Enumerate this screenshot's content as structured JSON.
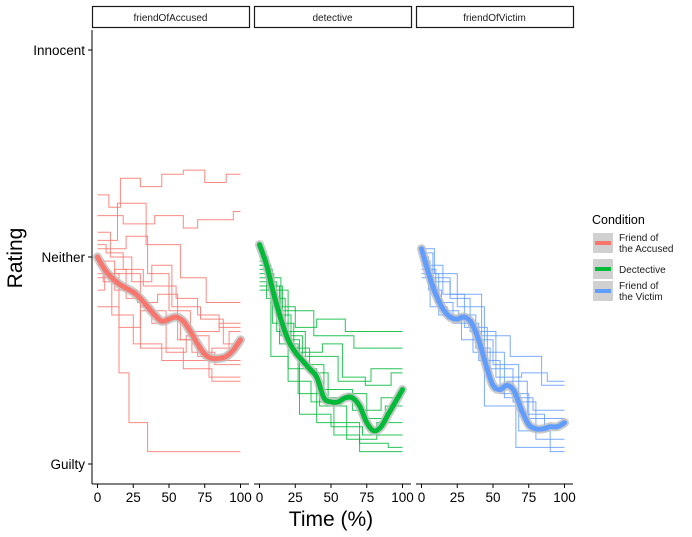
{
  "chart_data": {
    "type": "line",
    "xlabel": "Time (%)",
    "ylabel": "Rating",
    "xlim": [
      0,
      100
    ],
    "ylim": [
      -50,
      50
    ],
    "x_ticks": [
      0,
      25,
      50,
      75,
      100
    ],
    "x_tick_labels": [
      "0",
      "25",
      "50",
      "75",
      "100"
    ],
    "y_ticks": [
      -50,
      0,
      50
    ],
    "y_tick_labels": [
      "Guilty",
      "Neither",
      "Innocent"
    ],
    "grid": false,
    "legend_position": "right",
    "legend_title": "Condition",
    "panels": [
      {
        "strip": "friendOfAccused",
        "color": "#F8766D",
        "legend_label": [
          "Friend of",
          "the Accused"
        ],
        "smooth": {
          "x": [
            0,
            5,
            10,
            15,
            20,
            25,
            30,
            35,
            40,
            45,
            50,
            55,
            60,
            65,
            70,
            75,
            80,
            85,
            90,
            95,
            100
          ],
          "y": [
            0,
            -3,
            -5,
            -6.5,
            -7.5,
            -8.5,
            -10,
            -12,
            -14,
            -15.5,
            -15,
            -14.5,
            -15.5,
            -18,
            -21,
            -23.5,
            -24.5,
            -24.5,
            -24,
            -22.5,
            -20
          ]
        },
        "traces": [
          {
            "x": [
              0,
              4,
              4,
              12,
              12,
              20,
              20,
              30,
              30,
              38,
              38,
              50,
              50,
              58,
              58,
              70,
              70,
              80,
              80,
              92,
              92,
              100
            ],
            "y": [
              -2,
              -2,
              -6,
              -6,
              -3,
              -3,
              -10,
              -10,
              -12,
              -12,
              -16,
              -16,
              -15,
              -15,
              -20,
              -20,
              -24,
              -24,
              -22,
              -22,
              -18,
              -18
            ]
          },
          {
            "x": [
              0,
              8,
              8,
              16,
              16,
              30,
              30,
              45,
              45,
              60,
              60,
              75,
              75,
              90,
              90,
              100
            ],
            "y": [
              15,
              15,
              12,
              12,
              19,
              19,
              17,
              17,
              20,
              20,
              21,
              21,
              18,
              18,
              20,
              20
            ]
          },
          {
            "x": [
              0,
              18,
              18,
              40,
              40,
              60,
              60,
              70,
              70,
              95,
              95,
              100
            ],
            "y": [
              10,
              10,
              8,
              8,
              10,
              10,
              7,
              7,
              9,
              9,
              11,
              11
            ]
          },
          {
            "x": [
              0,
              10,
              10,
              25,
              25,
              45,
              45,
              60,
              60,
              80,
              80,
              100
            ],
            "y": [
              -5,
              -5,
              -14,
              -14,
              -21,
              -21,
              -25,
              -25,
              -27,
              -27,
              -30,
              -30
            ]
          },
          {
            "x": [
              0,
              15,
              15,
              22,
              22,
              35,
              35,
              100
            ],
            "y": [
              -12,
              -12,
              -28,
              -28,
              -40,
              -40,
              -47,
              -47
            ]
          },
          {
            "x": [
              0,
              6,
              6,
              18,
              18,
              32,
              32,
              55,
              55,
              70,
              70,
              85,
              85,
              100
            ],
            "y": [
              3,
              3,
              1,
              1,
              -3,
              -3,
              -7,
              -7,
              -10,
              -10,
              -14,
              -14,
              -17,
              -17
            ]
          },
          {
            "x": [
              0,
              12,
              12,
              28,
              28,
              42,
              42,
              56,
              56,
              66,
              66,
              82,
              82,
              100
            ],
            "y": [
              -1,
              -1,
              -8,
              -8,
              -11,
              -11,
              -9,
              -9,
              -20,
              -20,
              -23,
              -23,
              -26,
              -26
            ]
          },
          {
            "x": [
              0,
              20,
              20,
              35,
              35,
              50,
              50,
              65,
              65,
              85,
              85,
              100
            ],
            "y": [
              2,
              2,
              5,
              5,
              -4,
              -4,
              -13,
              -13,
              -18,
              -18,
              -16,
              -16
            ]
          },
          {
            "x": [
              0,
              5,
              5,
              15,
              15,
              30,
              30,
              48,
              48,
              62,
              62,
              78,
              78,
              100
            ],
            "y": [
              -8,
              -8,
              -4,
              -4,
              -17,
              -17,
              -13,
              -13,
              -23,
              -23,
              -19,
              -19,
              -29,
              -29
            ]
          },
          {
            "x": [
              0,
              9,
              9,
              24,
              24,
              38,
              38,
              52,
              52,
              72,
              72,
              88,
              88,
              100
            ],
            "y": [
              6,
              6,
              0,
              0,
              -6,
              -6,
              -2,
              -2,
              -12,
              -12,
              -15,
              -15,
              -21,
              -21
            ]
          },
          {
            "x": [
              0,
              30,
              30,
              60,
              60,
              100
            ],
            "y": [
              -4,
              -4,
              -22,
              -22,
              -25,
              -25
            ]
          },
          {
            "x": [
              0,
              14,
              14,
              34,
              34,
              58,
              58,
              76,
              76,
              100
            ],
            "y": [
              4,
              4,
              13,
              13,
              3,
              3,
              -5,
              -5,
              -11,
              -11
            ]
          }
        ]
      },
      {
        "strip": "detective",
        "color": "#00BA38",
        "legend_label": [
          "Dectective"
        ],
        "smooth": {
          "x": [
            0,
            5,
            10,
            15,
            20,
            25,
            30,
            35,
            40,
            45,
            50,
            55,
            60,
            65,
            70,
            75,
            80,
            85,
            90,
            95,
            100
          ],
          "y": [
            3,
            -2,
            -9,
            -15,
            -20,
            -23,
            -25,
            -27,
            -29,
            -34,
            -35,
            -35,
            -34,
            -34,
            -36,
            -40,
            -42,
            -41,
            -38,
            -35,
            -32
          ]
        },
        "traces": [
          {
            "x": [
              0,
              6,
              6,
              12,
              12,
              22,
              22,
              35,
              35,
              48,
              48,
              62,
              62,
              75,
              75,
              88,
              88,
              100
            ],
            "y": [
              0,
              0,
              -8,
              -8,
              -14,
              -14,
              -22,
              -22,
              -28,
              -28,
              -34,
              -34,
              -33,
              -33,
              -39,
              -39,
              -36,
              -36
            ]
          },
          {
            "x": [
              0,
              10,
              10,
              25,
              25,
              40,
              40,
              60,
              60,
              80,
              80,
              100
            ],
            "y": [
              -4,
              -4,
              -12,
              -12,
              -17,
              -17,
              -15,
              -15,
              -18,
              -18,
              -18,
              -18
            ]
          },
          {
            "x": [
              0,
              8,
              8,
              20,
              20,
              36,
              36,
              52,
              52,
              70,
              70,
              90,
              90,
              100
            ],
            "y": [
              -2,
              -2,
              -24,
              -24,
              -30,
              -30,
              -35,
              -35,
              -43,
              -43,
              -45,
              -45,
              -46,
              -46
            ]
          },
          {
            "x": [
              0,
              15,
              15,
              30,
              30,
              45,
              45,
              65,
              65,
              85,
              85,
              100
            ],
            "y": [
              -5,
              -5,
              -19,
              -19,
              -26,
              -26,
              -32,
              -32,
              -37,
              -37,
              -34,
              -34
            ]
          },
          {
            "x": [
              0,
              5,
              5,
              18,
              18,
              28,
              28,
              50,
              50,
              72,
              72,
              100
            ],
            "y": [
              -1,
              -1,
              -10,
              -10,
              -20,
              -20,
              -38,
              -38,
              -41,
              -41,
              -43,
              -43
            ]
          },
          {
            "x": [
              0,
              12,
              12,
              32,
              32,
              55,
              55,
              78,
              78,
              100
            ],
            "y": [
              -6,
              -6,
              -18,
              -18,
              -24,
              -24,
              -30,
              -30,
              -27,
              -27
            ]
          },
          {
            "x": [
              0,
              9,
              9,
              24,
              24,
              44,
              44,
              58,
              58,
              74,
              74,
              92,
              92,
              100
            ],
            "y": [
              -3,
              -3,
              -16,
              -16,
              -23,
              -23,
              -21,
              -21,
              -29,
              -29,
              -31,
              -31,
              -28,
              -28
            ]
          },
          {
            "x": [
              0,
              20,
              20,
              40,
              40,
              70,
              70,
              100
            ],
            "y": [
              -8,
              -8,
              -27,
              -27,
              -40,
              -40,
              -47,
              -47
            ]
          },
          {
            "x": [
              0,
              7,
              7,
              16,
              16,
              38,
              38,
              66,
              66,
              100
            ],
            "y": [
              -2,
              -2,
              -7,
              -7,
              -13,
              -13,
              -19,
              -19,
              -22,
              -22
            ]
          },
          {
            "x": [
              0,
              14,
              14,
              27,
              27,
              42,
              42,
              61,
              61,
              82,
              82,
              100
            ],
            "y": [
              -7,
              -7,
              -21,
              -21,
              -33,
              -33,
              -36,
              -36,
              -44,
              -44,
              -40,
              -40
            ]
          }
        ]
      },
      {
        "strip": "friendOfVictim",
        "color": "#619CFF",
        "legend_label": [
          "Friend of",
          "the Victim"
        ],
        "smooth": {
          "x": [
            0,
            5,
            10,
            15,
            20,
            25,
            30,
            35,
            40,
            45,
            50,
            55,
            60,
            65,
            70,
            75,
            80,
            85,
            90,
            95,
            100
          ],
          "y": [
            2,
            -4,
            -9,
            -12.5,
            -14.5,
            -15,
            -14.5,
            -16,
            -20,
            -26,
            -31,
            -32,
            -31,
            -32.5,
            -37,
            -40.5,
            -41.5,
            -41.5,
            -41,
            -41,
            -40
          ]
        },
        "traces": [
          {
            "x": [
              0,
              5,
              5,
              14,
              14,
              26,
              26,
              38,
              38,
              48,
              48,
              60,
              60,
              74,
              74,
              86,
              86,
              100
            ],
            "y": [
              0,
              0,
              -8,
              -8,
              -13,
              -13,
              -14,
              -14,
              -22,
              -22,
              -31,
              -31,
              -30,
              -30,
              -38,
              -38,
              -41,
              -41
            ]
          },
          {
            "x": [
              0,
              10,
              10,
              22,
              22,
              40,
              40,
              55,
              55,
              75,
              75,
              100
            ],
            "y": [
              -3,
              -3,
              -11,
              -11,
              -16,
              -16,
              -25,
              -25,
              -33,
              -33,
              -39,
              -39
            ]
          },
          {
            "x": [
              0,
              8,
              8,
              20,
              20,
              34,
              34,
              52,
              52,
              70,
              70,
              88,
              88,
              100
            ],
            "y": [
              1,
              1,
              -6,
              -6,
              -10,
              -10,
              -18,
              -18,
              -29,
              -29,
              -28,
              -28,
              -30,
              -30
            ]
          },
          {
            "x": [
              0,
              15,
              15,
              30,
              30,
              46,
              46,
              64,
              64,
              80,
              80,
              100
            ],
            "y": [
              -2,
              -2,
              -9,
              -9,
              -17,
              -17,
              -27,
              -27,
              -35,
              -35,
              -44,
              -44
            ]
          },
          {
            "x": [
              0,
              6,
              6,
              18,
              18,
              36,
              36,
              58,
              58,
              78,
              78,
              100
            ],
            "y": [
              -1,
              -1,
              -12,
              -12,
              -15,
              -15,
              -23,
              -23,
              -34,
              -34,
              -37,
              -37
            ]
          },
          {
            "x": [
              0,
              12,
              12,
              28,
              28,
              50,
              50,
              68,
              68,
              90,
              90,
              100
            ],
            "y": [
              -4,
              -4,
              -14,
              -14,
              -20,
              -20,
              -26,
              -26,
              -42,
              -42,
              -47,
              -47
            ]
          },
          {
            "x": [
              0,
              20,
              20,
              42,
              42,
              62,
              62,
              84,
              84,
              100
            ],
            "y": [
              -5,
              -5,
              -9,
              -9,
              -19,
              -19,
              -24,
              -24,
              -31,
              -31
            ]
          },
          {
            "x": [
              0,
              9,
              9,
              25,
              25,
              44,
              44,
              66,
              66,
              100
            ],
            "y": [
              2,
              2,
              -4,
              -4,
              -12,
              -12,
              -36,
              -36,
              -46,
              -46
            ]
          }
        ]
      }
    ]
  }
}
